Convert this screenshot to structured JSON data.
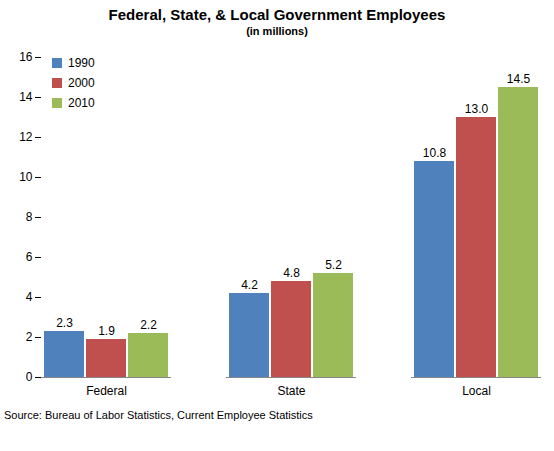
{
  "chart_data": {
    "type": "bar",
    "title": "Federal, State, & Local Government Employees",
    "subtitle": "(in millions)",
    "caption": "Source: Bureau of Labor Statistics, Current Employee Statistics",
    "categories": [
      "Federal",
      "State",
      "Local"
    ],
    "series": [
      {
        "name": "1990",
        "color": "#4F81BD",
        "values": [
          2.3,
          4.2,
          10.8
        ],
        "value_labels": [
          "2.3",
          "4.2",
          "10.8"
        ]
      },
      {
        "name": "2000",
        "color": "#C0504D",
        "values": [
          1.9,
          4.8,
          13.0
        ],
        "value_labels": [
          "1.9",
          "4.8",
          "13.0"
        ]
      },
      {
        "name": "2010",
        "color": "#9BBB59",
        "values": [
          2.2,
          5.2,
          14.5
        ],
        "value_labels": [
          "2.2",
          "5.2",
          "14.5"
        ]
      }
    ],
    "ylim": [
      0,
      16
    ],
    "yticks": [
      0,
      2,
      4,
      6,
      8,
      10,
      12,
      14,
      16
    ],
    "grid": false,
    "legend": "top-left",
    "data_labels": true
  }
}
